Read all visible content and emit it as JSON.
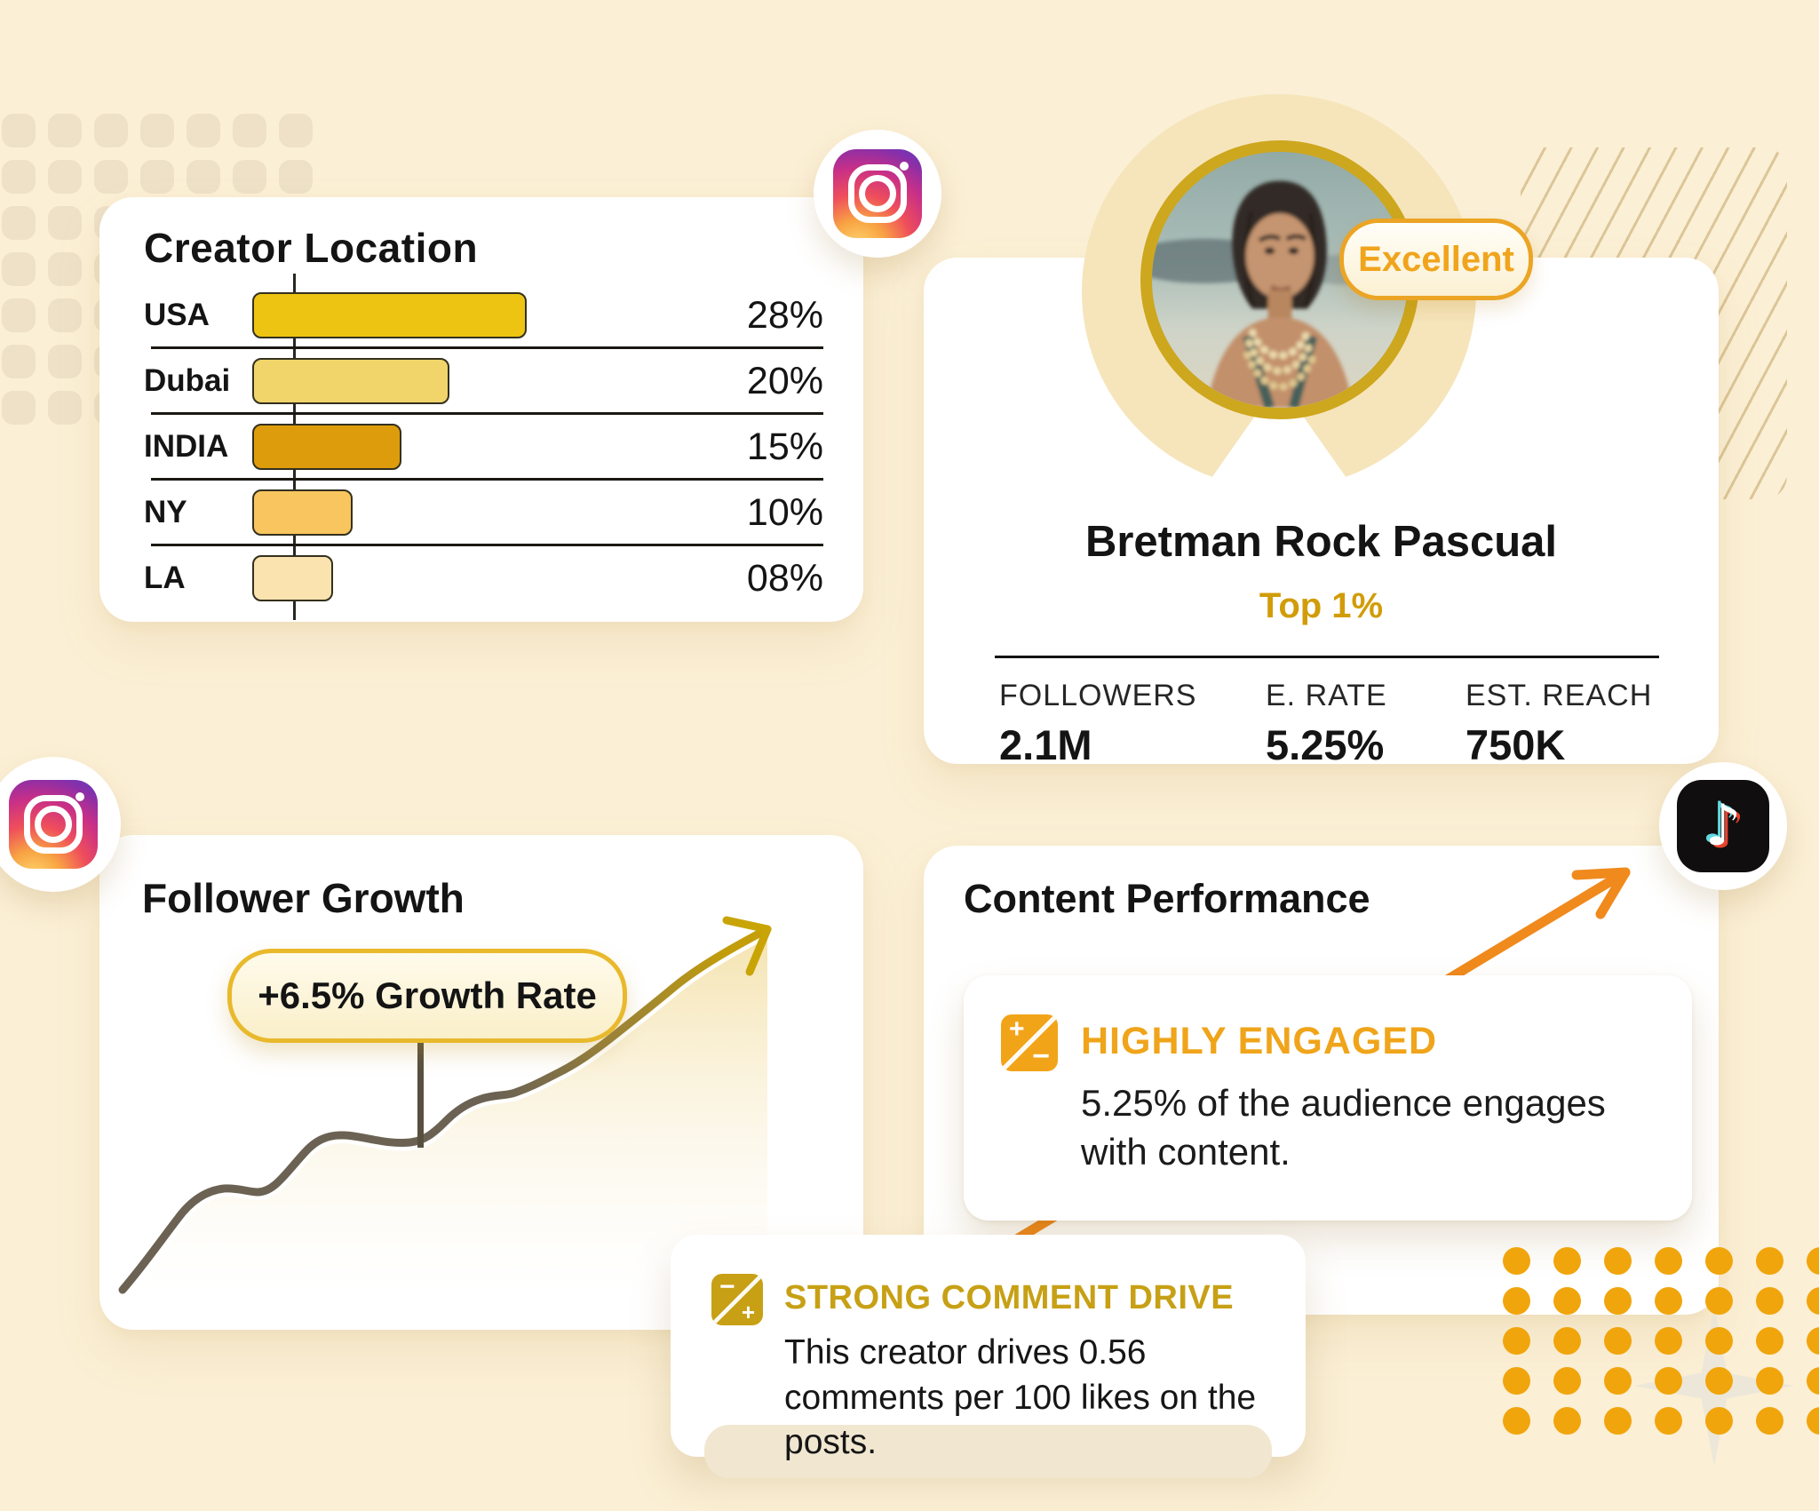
{
  "page": {
    "background": "#FBEFD5"
  },
  "creator_location": {
    "title": "Creator Location",
    "rows": [
      {
        "label": "USA",
        "pct_label": "28%",
        "value": 28,
        "color": "#EDC412"
      },
      {
        "label": "Dubai",
        "pct_label": "20%",
        "value": 20,
        "color": "#F1D46A"
      },
      {
        "label": "INDIA",
        "pct_label": "15%",
        "value": 15,
        "color": "#DD9C0B"
      },
      {
        "label": "NY",
        "pct_label": "10%",
        "value": 10,
        "color": "#F8C55F"
      },
      {
        "label": "LA",
        "pct_label": "08%",
        "value": 8,
        "color": "#FAE3AE"
      }
    ]
  },
  "profile": {
    "badge": "Excellent",
    "name": "Bretman Rock Pascual",
    "tier": "Top 1%",
    "stats": [
      {
        "label": "FOLLOWERS",
        "value": "2.1M"
      },
      {
        "label": "E. RATE",
        "value": "5.25%"
      },
      {
        "label": "EST. REACH",
        "value": "750K"
      }
    ]
  },
  "follower_growth": {
    "title": "Follower Growth",
    "pill": "+6.5% Growth Rate"
  },
  "content_performance": {
    "title": "Content Performance",
    "insight_title": "HIGHLY ENGAGED",
    "insight_body": "5.25% of the audience engages with content."
  },
  "comment_drive": {
    "title": "STRONG COMMENT DRIVE",
    "body": "This creator drives 0.56 comments per 100 likes on the posts."
  },
  "icons": {
    "instagram_top": "instagram-icon",
    "instagram_left": "instagram-icon",
    "tiktok": "tiktok-icon"
  },
  "colors": {
    "accent_gold": "#C9A004",
    "accent_orange": "#F2A418",
    "bar_border": "#34301F",
    "cream_circle": "#F6E5BB"
  },
  "chart_data": [
    {
      "type": "bar",
      "orientation": "horizontal",
      "title": "Creator Location",
      "categories": [
        "USA",
        "Dubai",
        "INDIA",
        "NY",
        "LA"
      ],
      "values": [
        28,
        20,
        15,
        10,
        8
      ],
      "unit": "percent",
      "value_labels": [
        "28%",
        "20%",
        "15%",
        "10%",
        "08%"
      ],
      "bar_colors": [
        "#EDC412",
        "#F1D46A",
        "#DD9C0B",
        "#F8C55F",
        "#FAE3AE"
      ],
      "xlim": [
        0,
        30
      ],
      "legend": false,
      "grid": "row-separators"
    },
    {
      "type": "line",
      "title": "Follower Growth",
      "annotation": "+6.5% Growth Rate",
      "trend": "increasing",
      "axes_labeled": false,
      "x_normalized": [
        0,
        1,
        2,
        3,
        4,
        5,
        6,
        7,
        8,
        9,
        10
      ],
      "y_estimated": [
        8,
        22,
        25,
        38,
        40,
        52,
        54,
        63,
        72,
        84,
        100
      ]
    }
  ]
}
